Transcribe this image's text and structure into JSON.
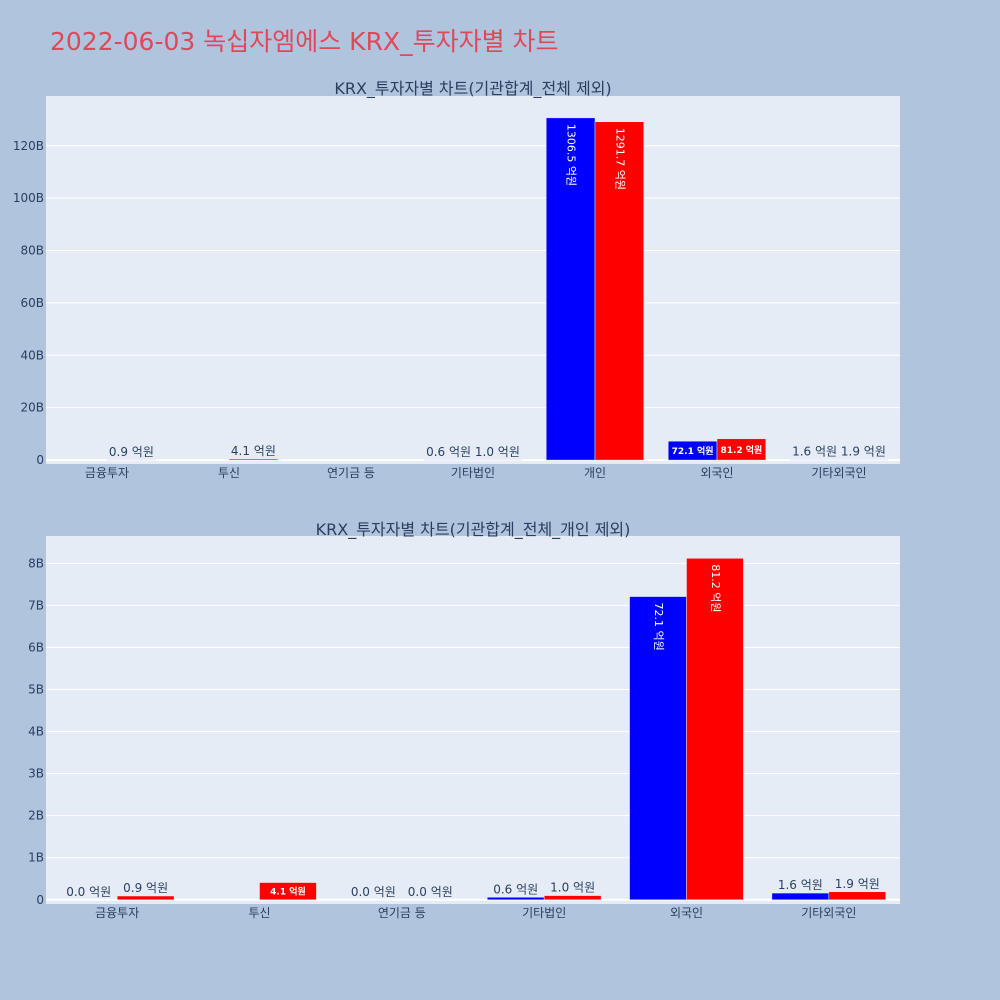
{
  "page_title": "2022-06-03 녹십자엠에스 KRX_투자자별 차트",
  "colors": {
    "buy": "#0000ff",
    "sell": "#ff0000",
    "plot_bg": "#e5ecf6",
    "paper_bg": "#b0c4de",
    "title": "#e0485a"
  },
  "chart_data": [
    {
      "type": "bar",
      "title": "KRX_투자자별 차트(기관합계_전체 제외)",
      "categories": [
        "금융투자",
        "투신",
        "연기금 등",
        "기타법인",
        "개인",
        "외국인",
        "기타외국인"
      ],
      "series": [
        {
          "color": "#0000ff",
          "values": [
            0.0,
            0.0,
            0.0,
            0.06,
            130.65,
            7.21,
            0.16
          ],
          "labels": [
            "",
            "",
            "",
            "0.6 억원",
            "1306.5 억원",
            "72.1 억원",
            "1.6 억원"
          ]
        },
        {
          "color": "#ff0000",
          "values": [
            0.09,
            0.41,
            0.0,
            0.1,
            129.17,
            8.12,
            0.19
          ],
          "labels": [
            "0.9 억원",
            "4.1 억원",
            "",
            "1.0 억원",
            "1291.7 억원",
            "81.2 억원",
            "1.9 억원"
          ]
        }
      ],
      "yticks": [
        "0",
        "20B",
        "40B",
        "60B",
        "80B",
        "100B",
        "120B"
      ],
      "ytick_values": [
        0,
        20,
        40,
        60,
        80,
        100,
        120
      ],
      "ylim": [
        -1.5,
        139
      ],
      "grid": true
    },
    {
      "type": "bar",
      "title": "KRX_투자자별 차트(기관합계_전체_개인 제외)",
      "categories": [
        "금융투자",
        "투신",
        "연기금 등",
        "기타법인",
        "외국인",
        "기타외국인"
      ],
      "series": [
        {
          "color": "#0000ff",
          "values": [
            0.0,
            0.0,
            0.0,
            0.06,
            7.21,
            0.16
          ],
          "labels": [
            "0.0 억원",
            "",
            "0.0 억원",
            "0.6 억원",
            "72.1 억원",
            "1.6 억원"
          ]
        },
        {
          "color": "#ff0000",
          "values": [
            0.09,
            0.41,
            0.0,
            0.1,
            8.12,
            0.19
          ],
          "labels": [
            "0.9 억원",
            "4.1 억원",
            "0.0 억원",
            "1.0 억원",
            "81.2 억원",
            "1.9 억원"
          ]
        }
      ],
      "yticks": [
        "0",
        "1B",
        "2B",
        "3B",
        "4B",
        "5B",
        "6B",
        "7B",
        "8B"
      ],
      "ytick_values": [
        0,
        1,
        2,
        3,
        4,
        5,
        6,
        7,
        8
      ],
      "ylim": [
        -0.1,
        8.65
      ],
      "grid": true
    }
  ]
}
